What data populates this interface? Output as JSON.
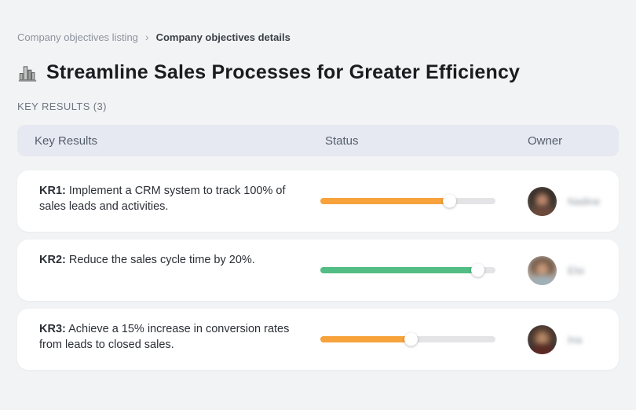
{
  "breadcrumb": {
    "items": [
      {
        "label": "Company objectives listing"
      },
      {
        "label": "Company objectives details"
      }
    ],
    "separator": "›"
  },
  "header": {
    "icon": "city-buildings-icon",
    "title": "Streamline Sales Processes for Greater Efficiency"
  },
  "section": {
    "label": "KEY RESULTS (3)"
  },
  "table": {
    "columns": {
      "key_results": "Key Results",
      "status": "Status",
      "owner": "Owner"
    },
    "progress_track_color": "#E4E4E6",
    "rows": [
      {
        "prefix": "KR1:",
        "text": "Implement a CRM system to track 100% of sales leads and activities.",
        "progress": {
          "value": 74,
          "color": "#F7A23B"
        },
        "owner": {
          "name": "Nadine",
          "avatar": {
            "bg": "#4A4138",
            "hair": "#2E2723",
            "face": "#C08A6E",
            "torso": "#6E4A3C"
          }
        }
      },
      {
        "prefix": "KR2:",
        "text": "Reduce the sales cycle time by 20%.",
        "progress": {
          "value": 90,
          "color": "#52BD84"
        },
        "owner": {
          "name": "Elsi",
          "avatar": {
            "bg": "#B3A89E",
            "hair": "#6A5140",
            "face": "#C99B7C",
            "torso": "#9FB0B8"
          }
        }
      },
      {
        "prefix": "KR3:",
        "text": "Achieve a 15% increase in conversion rates from leads to closed sales.",
        "progress": {
          "value": 52,
          "color": "#F7A23B"
        },
        "owner": {
          "name": "Ina",
          "avatar": {
            "bg": "#3D3636",
            "hair": "#53392B",
            "face": "#B98A6A",
            "torso": "#5C2A22"
          }
        }
      }
    ]
  },
  "colors": {
    "accent_orange": "#F7A23B",
    "accent_green": "#52BD84",
    "page_background": "#F2F3F5",
    "table_header_background": "#E6E9F1"
  }
}
